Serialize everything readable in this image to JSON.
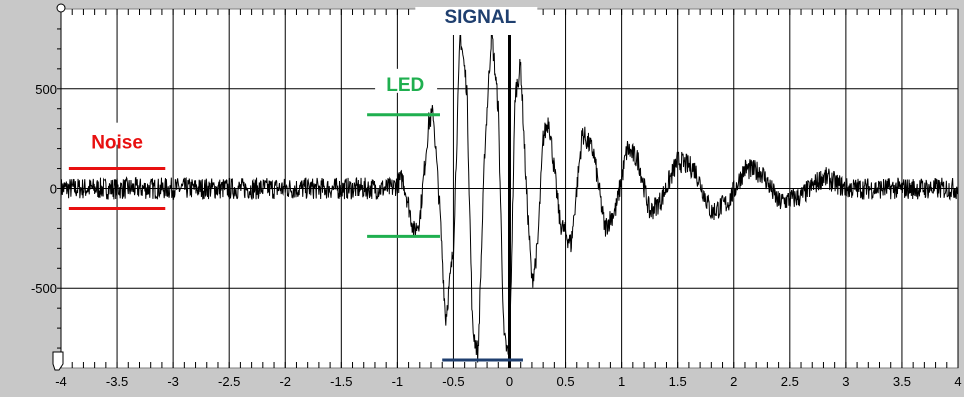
{
  "chart_data": {
    "type": "line",
    "xlim": [
      -4,
      4
    ],
    "ylim": [
      -900,
      900
    ],
    "x_ticks": [
      "-4",
      "-3.5",
      "-3",
      "-2.5",
      "-2",
      "-1.5",
      "-1",
      "-0.5",
      "0",
      "0.5",
      "1",
      "1.5",
      "2",
      "2.5",
      "3",
      "3.5",
      "4"
    ],
    "y_ticks": [
      "500",
      "0",
      "-500"
    ],
    "grid": true,
    "trace": {
      "x": [
        -4,
        -3.5,
        -3,
        -2.5,
        -2,
        -1.5,
        -1.05,
        -0.95,
        -0.85,
        -0.8,
        -0.72,
        -0.68,
        -0.62,
        -0.57,
        -0.5,
        -0.44,
        -0.38,
        -0.33,
        -0.28,
        -0.22,
        -0.16,
        -0.1,
        -0.05,
        0.0,
        0.05,
        0.1,
        0.15,
        0.2,
        0.25,
        0.3,
        0.35,
        0.45,
        0.55,
        0.65,
        0.75,
        0.85,
        0.95,
        1.05,
        1.15,
        1.25,
        1.35,
        1.5,
        1.65,
        1.8,
        1.95,
        2.1,
        2.25,
        2.4,
        2.6,
        2.8,
        3.0,
        3.5,
        4.0
      ],
      "y": [
        0,
        0,
        0,
        0,
        0,
        0,
        0,
        50,
        -220,
        -150,
        330,
        380,
        -120,
        -660,
        -300,
        780,
        500,
        -700,
        -830,
        200,
        790,
        400,
        -750,
        -860,
        470,
        620,
        0,
        -470,
        -300,
        250,
        350,
        -170,
        -280,
        280,
        180,
        -200,
        -100,
        200,
        140,
        -120,
        -60,
        140,
        100,
        -120,
        -70,
        100,
        80,
        -70,
        -40,
        60,
        0,
        0,
        0
      ]
    },
    "annotations": {
      "noise": {
        "label": "Noise",
        "lines_y": [
          100,
          -100
        ],
        "x_range": [
          -3.93,
          -3.07
        ],
        "color": "#e81010"
      },
      "led": {
        "label": "LED",
        "lines_y": [
          370,
          -240
        ],
        "x_range": [
          -1.27,
          -0.62
        ],
        "color": "#1faf4f"
      },
      "signal": {
        "label": "SIGNAL",
        "lines_y": [
          780,
          -860
        ],
        "x_range": [
          -0.6,
          0.12
        ],
        "color": "#1f3f6f"
      }
    },
    "colors": {
      "plot_bg": "#ffffff",
      "outer_bg": "#c8c8c8",
      "grid": "#000000",
      "trace": "#000000",
      "zero_marker": "#000000"
    }
  }
}
